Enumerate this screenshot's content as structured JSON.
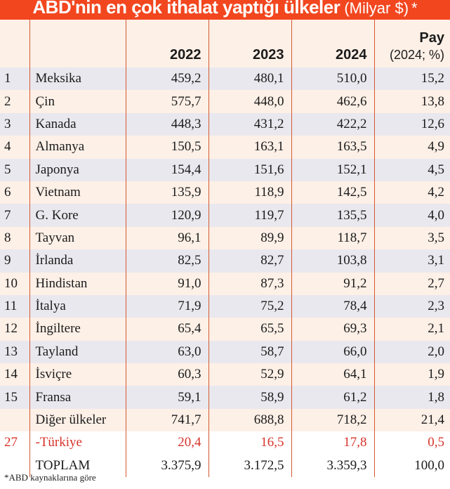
{
  "title": {
    "main": "ABD'nin en çok ithalat yaptığı ülkeler",
    "unit": "(Milyar $)",
    "star": "*"
  },
  "chart_data": {
    "type": "table",
    "columns": [
      "",
      "",
      "2022",
      "2023",
      "2024",
      "Pay",
      "(2024; %)"
    ],
    "rows": [
      {
        "rank": "1",
        "name": "Meksika",
        "y2022": "459,2",
        "y2023": "480,1",
        "y2024": "510,0",
        "share": "15,2"
      },
      {
        "rank": "2",
        "name": "Çin",
        "y2022": "575,7",
        "y2023": "448,0",
        "y2024": "462,6",
        "share": "13,8"
      },
      {
        "rank": "3",
        "name": "Kanada",
        "y2022": "448,3",
        "y2023": "431,2",
        "y2024": "422,2",
        "share": "12,6"
      },
      {
        "rank": "4",
        "name": "Almanya",
        "y2022": "150,5",
        "y2023": "163,1",
        "y2024": "163,5",
        "share": "4,9"
      },
      {
        "rank": "5",
        "name": "Japonya",
        "y2022": "154,4",
        "y2023": "151,6",
        "y2024": "152,1",
        "share": "4,5"
      },
      {
        "rank": "6",
        "name": "Vietnam",
        "y2022": "135,9",
        "y2023": "118,9",
        "y2024": "142,5",
        "share": "4,2"
      },
      {
        "rank": "7",
        "name": "G. Kore",
        "y2022": "120,9",
        "y2023": "119,7",
        "y2024": "135,5",
        "share": "4,0"
      },
      {
        "rank": "8",
        "name": "Tayvan",
        "y2022": "96,1",
        "y2023": "89,9",
        "y2024": "118,7",
        "share": "3,5"
      },
      {
        "rank": "9",
        "name": "İrlanda",
        "y2022": "82,5",
        "y2023": "82,7",
        "y2024": "103,8",
        "share": "3,1"
      },
      {
        "rank": "10",
        "name": "Hindistan",
        "y2022": "91,0",
        "y2023": "87,3",
        "y2024": "91,2",
        "share": "2,7"
      },
      {
        "rank": "11",
        "name": "İtalya",
        "y2022": "71,9",
        "y2023": "75,2",
        "y2024": "78,4",
        "share": "2,3"
      },
      {
        "rank": "12",
        "name": "İngiltere",
        "y2022": "65,4",
        "y2023": "65,5",
        "y2024": "69,3",
        "share": "2,1"
      },
      {
        "rank": "13",
        "name": "Tayland",
        "y2022": "63,0",
        "y2023": "58,7",
        "y2024": "66,0",
        "share": "2,0"
      },
      {
        "rank": "14",
        "name": "İsviçre",
        "y2022": "60,3",
        "y2023": "52,9",
        "y2024": "64,1",
        "share": "1,9"
      },
      {
        "rank": "15",
        "name": "Fransa",
        "y2022": "59,1",
        "y2023": "58,9",
        "y2024": "61,2",
        "share": "1,8"
      },
      {
        "rank": "",
        "name": "Diğer ülkeler",
        "y2022": "741,7",
        "y2023": "688,8",
        "y2024": "718,2",
        "share": "21,4"
      },
      {
        "rank": "27",
        "name": "-Türkiye",
        "y2022": "20,4",
        "y2023": "16,5",
        "y2024": "17,8",
        "share": "0,5",
        "highlight": true
      },
      {
        "rank": "",
        "name": "TOPLAM",
        "y2022": "3.375,9",
        "y2023": "3.172,5",
        "y2024": "3.359,3",
        "share": "100,0"
      }
    ]
  },
  "footnote": "*ABD kaynaklarına göre",
  "colors": {
    "title_bg": "#f2461f",
    "row_peach": "#fdf0e7",
    "row_gray": "#e9e8ee",
    "highlight_red": "#d8332a",
    "divider": "#d4582f"
  }
}
